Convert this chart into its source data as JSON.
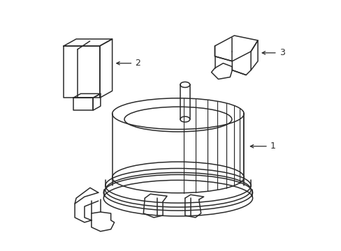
{
  "bg_color": "#ffffff",
  "line_color": "#2a2a2a",
  "line_width": 1.1,
  "fig_width": 4.89,
  "fig_height": 3.6,
  "dpi": 100
}
